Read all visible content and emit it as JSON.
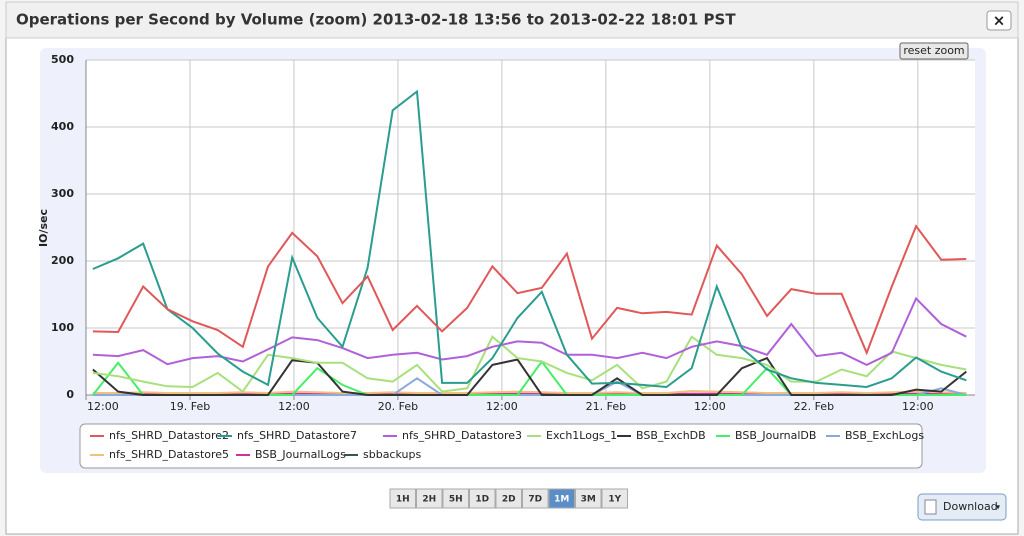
{
  "chart_data": {
    "type": "line",
    "title": "Operations per Second by Volume (zoom) 2013-02-18 13:56 to 2013-02-22 18:01 PST",
    "y_label": "IO/sec",
    "x": [
      12.8,
      15.7,
      18.6,
      21.4,
      24.3,
      27.2,
      30.1,
      33,
      35.8,
      38.7,
      41.6,
      44.5,
      47.4,
      50.2,
      53.1,
      56,
      58.9,
      61.8,
      64.6,
      67.5,
      70.4,
      73.3,
      76.2,
      79,
      81.9,
      84.8,
      87.7,
      90.6,
      93.4,
      96.3,
      99.2,
      102.1,
      105,
      107.8,
      110.7,
      113.6
    ],
    "xlim": [
      12,
      114.6
    ],
    "xticks": [
      {
        "value": 12,
        "label": "12:00"
      },
      {
        "value": 24,
        "label": "19. Feb"
      },
      {
        "value": 36,
        "label": "12:00"
      },
      {
        "value": 48,
        "label": "20. Feb"
      },
      {
        "value": 60,
        "label": "12:00"
      },
      {
        "value": 72,
        "label": "21. Feb"
      },
      {
        "value": 84,
        "label": "12:00"
      },
      {
        "value": 96,
        "label": "22. Feb"
      },
      {
        "value": 108,
        "label": "12:00"
      }
    ],
    "ylim": [
      0,
      500
    ],
    "yticks": [
      0,
      100,
      200,
      300,
      400,
      500
    ],
    "grid": true,
    "series": [
      {
        "name": "nfs_SHRD_Datastore2",
        "color": "#e05858",
        "values": [
          95,
          94,
          162,
          128,
          110,
          97,
          72,
          192,
          242,
          207,
          137,
          177,
          97,
          133,
          95,
          130,
          192,
          152,
          160,
          211,
          84,
          130,
          122,
          124,
          120,
          223,
          180,
          118,
          158,
          151,
          151,
          63,
          162,
          252,
          202,
          203
        ]
      },
      {
        "name": "nfs_SHRD_Datastore7",
        "color": "#2a9d8f",
        "values": [
          188,
          204,
          226,
          128,
          100,
          62,
          35,
          15,
          205,
          115,
          72,
          190,
          425,
          453,
          18,
          18,
          55,
          115,
          154,
          60,
          17,
          18,
          15,
          12,
          40,
          162,
          70,
          38,
          25,
          18,
          15,
          12,
          25,
          56,
          35,
          22
        ]
      },
      {
        "name": "nfs_SHRD_Datastore3",
        "color": "#b060d8",
        "values": [
          60,
          58,
          67,
          46,
          55,
          58,
          50,
          68,
          86,
          82,
          70,
          55,
          60,
          63,
          53,
          58,
          72,
          80,
          78,
          60,
          60,
          55,
          63,
          55,
          72,
          80,
          73,
          60,
          106,
          58,
          63,
          45,
          63,
          144,
          106,
          87
        ]
      },
      {
        "name": "Exch1Logs_1",
        "color": "#a8e07c",
        "values": [
          33,
          28,
          20,
          13,
          12,
          33,
          5,
          60,
          55,
          48,
          48,
          25,
          20,
          45,
          5,
          10,
          87,
          55,
          50,
          33,
          22,
          45,
          10,
          20,
          87,
          60,
          55,
          45,
          20,
          20,
          38,
          28,
          65,
          55,
          45,
          38
        ]
      },
      {
        "name": "BSB_ExchDB",
        "color": "#333333",
        "values": [
          38,
          5,
          0,
          0,
          0,
          0,
          0,
          0,
          52,
          48,
          5,
          0,
          0,
          0,
          0,
          0,
          45,
          53,
          0,
          0,
          0,
          25,
          0,
          0,
          0,
          0,
          40,
          55,
          0,
          0,
          0,
          0,
          0,
          8,
          5,
          35
        ]
      },
      {
        "name": "BSB_JournalDB",
        "color": "#44ee66",
        "values": [
          0,
          48,
          0,
          0,
          0,
          0,
          0,
          0,
          0,
          40,
          15,
          0,
          0,
          0,
          0,
          0,
          0,
          0,
          50,
          0,
          0,
          0,
          0,
          0,
          0,
          0,
          0,
          40,
          0,
          0,
          0,
          0,
          0,
          0,
          0,
          0
        ]
      },
      {
        "name": "BSB_ExchLogs",
        "color": "#88aadd",
        "values": [
          0,
          0,
          0,
          0,
          0,
          0,
          0,
          0,
          0,
          0,
          0,
          0,
          0,
          25,
          0,
          0,
          0,
          0,
          0,
          0,
          0,
          20,
          0,
          0,
          0,
          0,
          0,
          0,
          0,
          0,
          0,
          0,
          0,
          0,
          10,
          0
        ]
      },
      {
        "name": "nfs_SHRD_Datastore5",
        "color": "#f0c080",
        "values": [
          3,
          3,
          4,
          3,
          3,
          3,
          4,
          3,
          5,
          4,
          3,
          3,
          4,
          3,
          3,
          3,
          4,
          5,
          4,
          3,
          3,
          4,
          3,
          3,
          6,
          5,
          4,
          3,
          3,
          3,
          4,
          3,
          4,
          5,
          4,
          3
        ]
      },
      {
        "name": "BSB_JournalLogs",
        "color": "#cc3399",
        "values": [
          2,
          2,
          2,
          2,
          2,
          2,
          2,
          2,
          2,
          2,
          2,
          2,
          2,
          2,
          2,
          2,
          2,
          2,
          2,
          2,
          2,
          2,
          2,
          2,
          2,
          2,
          2,
          2,
          2,
          2,
          2,
          2,
          2,
          2,
          2,
          2
        ]
      },
      {
        "name": "sbbackups",
        "color": "#335555",
        "values": [
          1,
          1,
          1,
          1,
          1,
          1,
          1,
          1,
          1,
          1,
          1,
          1,
          1,
          1,
          1,
          1,
          1,
          1,
          1,
          1,
          1,
          1,
          1,
          1,
          1,
          1,
          1,
          1,
          1,
          1,
          1,
          1,
          1,
          1,
          1,
          1
        ]
      }
    ]
  },
  "ui": {
    "close": "×",
    "reset_zoom": "reset zoom",
    "download": "Download",
    "ranges": [
      "1H",
      "2H",
      "5H",
      "1D",
      "2D",
      "7D",
      "1M",
      "3M",
      "1Y"
    ],
    "selected_range": "1M"
  }
}
